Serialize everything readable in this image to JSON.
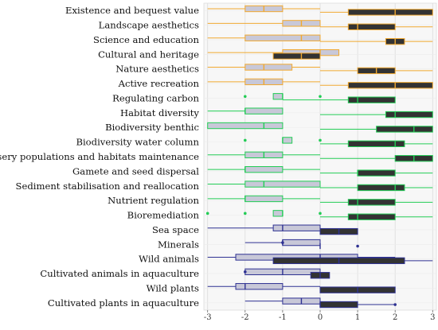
{
  "chart_data": {
    "type": "boxplot",
    "orientation": "horizontal",
    "title": "",
    "xlabel": "",
    "ylabel": "",
    "xlim": [
      -3.1,
      3.1
    ],
    "x_ticks": [
      -3,
      -2,
      -1,
      0,
      1,
      2,
      3
    ],
    "x_tick_labels": [
      "-3",
      "-2",
      "-1",
      "0",
      "1",
      "2",
      "3"
    ],
    "grid": "vertical",
    "box_height_fraction": 0.4,
    "group_colors": {
      "cultural": "#F0A830",
      "regulating": "#22CC55",
      "provisioning": "#2E3192"
    },
    "split_style": {
      "lower": {
        "fill": "#c8c8d8",
        "stroke_by_group": true
      },
      "upper": {
        "fill": "#333333"
      }
    },
    "categories": [
      {
        "label": "Existence and bequest value",
        "group": "cultural",
        "lower": {
          "min": -3,
          "q1": -2,
          "median": -1.5,
          "q3": -1,
          "max": 0
        },
        "upper": {
          "min": 0,
          "q1": 0.75,
          "median": 2,
          "q3": 3,
          "max": 3
        }
      },
      {
        "label": "Landscape aesthetics",
        "group": "cultural",
        "lower": {
          "min": -3,
          "q1": -1,
          "median": -0.5,
          "q3": 0,
          "max": 0
        },
        "upper": {
          "min": 0,
          "q1": 0.75,
          "median": 1,
          "q3": 2,
          "max": 3
        }
      },
      {
        "label": "Science and education",
        "group": "cultural",
        "lower": {
          "min": -3,
          "q1": -2,
          "median": -0.5,
          "q3": 0,
          "max": 0
        },
        "upper": {
          "min": 0,
          "q1": 1.75,
          "median": 2,
          "q3": 2.25,
          "max": 3
        }
      },
      {
        "label": "Cultural and heritage",
        "group": "cultural",
        "lower": {
          "min": -3,
          "q1": -1,
          "median": 0,
          "q3": 0.5,
          "max": 0.5
        },
        "upper": {
          "min": -1.25,
          "q1": -1.25,
          "median": -0.5,
          "q3": 0,
          "max": 0
        }
      },
      {
        "label": "Nature aesthetics",
        "group": "cultural",
        "lower": {
          "min": -3,
          "q1": -2,
          "median": -1.5,
          "q3": -0.75,
          "max": 0
        },
        "upper": {
          "min": 0,
          "q1": 1,
          "median": 1.5,
          "q3": 2,
          "max": 3
        }
      },
      {
        "label": "Active recreation",
        "group": "cultural",
        "lower": {
          "min": -3,
          "q1": -2,
          "median": -1.5,
          "q3": -1,
          "max": 0
        },
        "upper": {
          "min": 0,
          "q1": 0.75,
          "median": 2,
          "q3": 3,
          "max": 3
        }
      },
      {
        "label": "Regulating carbon",
        "group": "regulating",
        "lower": {
          "min": -1.25,
          "q1": -1.25,
          "median": -1,
          "q3": -1,
          "max": -1,
          "outliers": [
            -2,
            0
          ]
        },
        "upper": {
          "min": -1,
          "q1": 0.75,
          "median": 1,
          "q3": 2,
          "max": 2
        }
      },
      {
        "label": "Habitat diversity",
        "group": "regulating",
        "lower": {
          "min": -3,
          "q1": -2,
          "median": -2,
          "q3": -1,
          "max": -1
        },
        "upper": {
          "min": 0,
          "q1": 1.75,
          "median": 2,
          "q3": 3,
          "max": 3
        }
      },
      {
        "label": "Biodiversity benthic",
        "group": "regulating",
        "lower": {
          "min": -3,
          "q1": -3,
          "median": -1.5,
          "q3": -1,
          "max": -1
        },
        "upper": {
          "min": 0,
          "q1": 1.5,
          "median": 2.5,
          "q3": 3,
          "max": 3
        }
      },
      {
        "label": "Biodiversity water column",
        "group": "regulating",
        "lower": {
          "min": -1,
          "q1": -1,
          "median": -1,
          "q3": -0.75,
          "max": -0.75,
          "outliers": [
            -2,
            0
          ]
        },
        "upper": {
          "min": 0,
          "q1": 0.75,
          "median": 2,
          "q3": 2.25,
          "max": 3
        }
      },
      {
        "label": "Nursery populations and habitats maintenance",
        "group": "regulating",
        "lower": {
          "min": -3,
          "q1": -2,
          "median": -1.5,
          "q3": -1,
          "max": 0
        },
        "upper": {
          "min": 0,
          "q1": 2,
          "median": 2.5,
          "q3": 3,
          "max": 3
        }
      },
      {
        "label": "Gamete and seed dispersal",
        "group": "regulating",
        "lower": {
          "min": -3,
          "q1": -2,
          "median": -2,
          "q3": -1,
          "max": 0
        },
        "upper": {
          "min": 0,
          "q1": 1,
          "median": 1,
          "q3": 2,
          "max": 3
        }
      },
      {
        "label": "Sediment stabilisation and reallocation",
        "group": "regulating",
        "lower": {
          "min": -3,
          "q1": -2,
          "median": -1.5,
          "q3": 0,
          "max": 0
        },
        "upper": {
          "min": 0,
          "q1": 1,
          "median": 2,
          "q3": 2.25,
          "max": 3
        }
      },
      {
        "label": "Nutrient regulation",
        "group": "regulating",
        "lower": {
          "min": -3,
          "q1": -2,
          "median": -2,
          "q3": -1,
          "max": 0
        },
        "upper": {
          "min": 0,
          "q1": 0.75,
          "median": 1,
          "q3": 2,
          "max": 3
        }
      },
      {
        "label": "Bioremediation",
        "group": "regulating",
        "lower": {
          "min": -1.25,
          "q1": -1.25,
          "median": -1,
          "q3": -1,
          "max": -1,
          "outliers": [
            -3,
            -2,
            0
          ]
        },
        "upper": {
          "min": 0,
          "q1": 0.75,
          "median": 1,
          "q3": 2,
          "max": 3
        }
      },
      {
        "label": "Sea space",
        "group": "provisioning",
        "lower": {
          "min": -3,
          "q1": -1.25,
          "median": -1,
          "q3": 0,
          "max": 0
        },
        "upper": {
          "min": 0,
          "q1": 0,
          "median": 0.5,
          "q3": 1,
          "max": 1
        }
      },
      {
        "label": "Minerals",
        "group": "provisioning",
        "lower": {
          "min": -2,
          "q1": -1,
          "median": -1,
          "q3": 0,
          "max": 0,
          "outliers": [
            -1
          ]
        },
        "upper": {
          "min": 0,
          "q1": 0,
          "median": 0,
          "q3": 0,
          "max": 0,
          "outliers": [
            1
          ]
        }
      },
      {
        "label": "Wild animals",
        "group": "provisioning",
        "lower": {
          "min": -3,
          "q1": -2.25,
          "median": 0,
          "q3": 1,
          "max": 2
        },
        "upper": {
          "min": -1.25,
          "q1": -1.25,
          "median": 0.5,
          "q3": 2.25,
          "max": 3
        }
      },
      {
        "label": "Cultivated animals in aquaculture",
        "group": "provisioning",
        "lower": {
          "min": -2,
          "q1": -2,
          "median": -1,
          "q3": 0,
          "max": 0,
          "outliers": [
            -2
          ]
        },
        "upper": {
          "min": -0.25,
          "q1": -0.25,
          "median": 0,
          "q3": 0.25,
          "max": 0.25
        }
      },
      {
        "label": "Wild plants",
        "group": "provisioning",
        "lower": {
          "min": -3,
          "q1": -2.25,
          "median": -2,
          "q3": -1,
          "max": 0
        },
        "upper": {
          "min": 0,
          "q1": 0,
          "median": 1,
          "q3": 2,
          "max": 2
        }
      },
      {
        "label": "Cultivated plants in aquaculture",
        "group": "provisioning",
        "lower": {
          "min": -2,
          "q1": -1,
          "median": -0.5,
          "q3": 0,
          "max": 0
        },
        "upper": {
          "min": 0,
          "q1": 0,
          "median": 0,
          "q3": 1,
          "max": 2,
          "outliers": [
            2
          ]
        }
      }
    ]
  }
}
